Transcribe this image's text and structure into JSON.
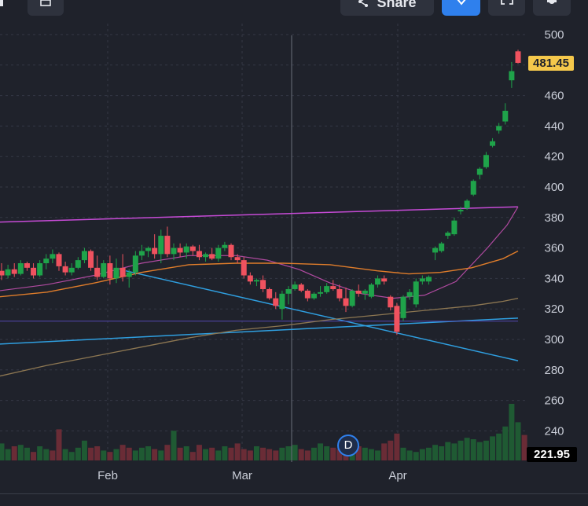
{
  "toolbar": {
    "share_label": "Share",
    "icons": [
      "calendar-icon",
      "share-icon",
      "check-icon",
      "fullscreen-icon",
      "settings-icon"
    ]
  },
  "colors": {
    "background": "#1f222b",
    "grid": "#343845",
    "up": "#1fa34a",
    "down": "#f0525f",
    "volume_up": "#1f5a33",
    "volume_down": "#6a2c36",
    "ma_short": "#b04aa0",
    "ma_mid": "#e07d2b",
    "ma_long": "#8d7752",
    "trend_magenta": "#c64bd6",
    "trend_blue": "#2f9fe0",
    "horizontal_purple": "#5246b0",
    "crosshair": "#6a6e7a",
    "last_price_tag": "#f5c84b"
  },
  "chart_data": {
    "type": "candlestick",
    "x_ticks": [
      "Feb",
      "Mar",
      "Apr"
    ],
    "y_ticks": [
      500,
      480,
      460,
      440,
      420,
      400,
      380,
      360,
      340,
      320,
      300,
      280,
      260,
      240
    ],
    "ylim": [
      230,
      505
    ],
    "grid": true,
    "last_price_label": "481.45",
    "volume_label": "221.95",
    "marker_label": "D",
    "candles": [
      {
        "o": 345,
        "h": 350,
        "l": 339,
        "c": 342
      },
      {
        "o": 342,
        "h": 349,
        "l": 340,
        "c": 346
      },
      {
        "o": 346,
        "h": 350,
        "l": 341,
        "c": 343
      },
      {
        "o": 343,
        "h": 352,
        "l": 342,
        "c": 350
      },
      {
        "o": 350,
        "h": 351,
        "l": 345,
        "c": 347
      },
      {
        "o": 347,
        "h": 350,
        "l": 340,
        "c": 342
      },
      {
        "o": 342,
        "h": 352,
        "l": 341,
        "c": 350
      },
      {
        "o": 350,
        "h": 356,
        "l": 346,
        "c": 353
      },
      {
        "o": 353,
        "h": 359,
        "l": 350,
        "c": 356
      },
      {
        "o": 356,
        "h": 357,
        "l": 345,
        "c": 348
      },
      {
        "o": 348,
        "h": 351,
        "l": 342,
        "c": 344
      },
      {
        "o": 344,
        "h": 350,
        "l": 342,
        "c": 347
      },
      {
        "o": 347,
        "h": 354,
        "l": 346,
        "c": 352
      },
      {
        "o": 352,
        "h": 360,
        "l": 350,
        "c": 358
      },
      {
        "o": 358,
        "h": 359,
        "l": 345,
        "c": 347
      },
      {
        "o": 347,
        "h": 355,
        "l": 339,
        "c": 341
      },
      {
        "o": 341,
        "h": 352,
        "l": 340,
        "c": 350
      },
      {
        "o": 350,
        "h": 355,
        "l": 336,
        "c": 340
      },
      {
        "o": 340,
        "h": 353,
        "l": 337,
        "c": 347
      },
      {
        "o": 347,
        "h": 356,
        "l": 338,
        "c": 341
      },
      {
        "o": 341,
        "h": 346,
        "l": 334,
        "c": 344
      },
      {
        "o": 344,
        "h": 358,
        "l": 342,
        "c": 355
      },
      {
        "o": 355,
        "h": 362,
        "l": 352,
        "c": 358
      },
      {
        "o": 358,
        "h": 361,
        "l": 354,
        "c": 360
      },
      {
        "o": 360,
        "h": 369,
        "l": 353,
        "c": 356
      },
      {
        "o": 356,
        "h": 372,
        "l": 350,
        "c": 368
      },
      {
        "o": 368,
        "h": 374,
        "l": 354,
        "c": 356
      },
      {
        "o": 356,
        "h": 363,
        "l": 352,
        "c": 360
      },
      {
        "o": 360,
        "h": 363,
        "l": 354,
        "c": 357
      },
      {
        "o": 357,
        "h": 363,
        "l": 353,
        "c": 361
      },
      {
        "o": 361,
        "h": 362,
        "l": 355,
        "c": 358
      },
      {
        "o": 358,
        "h": 362,
        "l": 352,
        "c": 354
      },
      {
        "o": 354,
        "h": 357,
        "l": 351,
        "c": 356
      },
      {
        "o": 356,
        "h": 360,
        "l": 352,
        "c": 353
      },
      {
        "o": 353,
        "h": 362,
        "l": 351,
        "c": 360
      },
      {
        "o": 360,
        "h": 364,
        "l": 358,
        "c": 362
      },
      {
        "o": 362,
        "h": 363,
        "l": 352,
        "c": 354
      },
      {
        "o": 354,
        "h": 356,
        "l": 350,
        "c": 352
      },
      {
        "o": 352,
        "h": 354,
        "l": 340,
        "c": 342
      },
      {
        "o": 342,
        "h": 344,
        "l": 336,
        "c": 338
      },
      {
        "o": 338,
        "h": 340,
        "l": 335,
        "c": 339
      },
      {
        "o": 339,
        "h": 342,
        "l": 331,
        "c": 333
      },
      {
        "o": 333,
        "h": 334,
        "l": 326,
        "c": 327
      },
      {
        "o": 327,
        "h": 331,
        "l": 320,
        "c": 322
      },
      {
        "o": 320,
        "h": 332,
        "l": 313,
        "c": 330
      },
      {
        "o": 330,
        "h": 335,
        "l": 323,
        "c": 333
      },
      {
        "o": 333,
        "h": 338,
        "l": 332,
        "c": 336
      },
      {
        "o": 336,
        "h": 337,
        "l": 331,
        "c": 332
      },
      {
        "o": 332,
        "h": 333,
        "l": 325,
        "c": 327
      },
      {
        "o": 327,
        "h": 331,
        "l": 326,
        "c": 330
      },
      {
        "o": 330,
        "h": 335,
        "l": 328,
        "c": 331
      },
      {
        "o": 331,
        "h": 337,
        "l": 330,
        "c": 335
      },
      {
        "o": 335,
        "h": 339,
        "l": 332,
        "c": 333
      },
      {
        "o": 333,
        "h": 336,
        "l": 325,
        "c": 327
      },
      {
        "o": 327,
        "h": 334,
        "l": 318,
        "c": 322
      },
      {
        "o": 322,
        "h": 333,
        "l": 321,
        "c": 332
      },
      {
        "o": 332,
        "h": 336,
        "l": 328,
        "c": 330
      },
      {
        "o": 330,
        "h": 333,
        "l": 326,
        "c": 332
      },
      {
        "o": 328,
        "h": 337,
        "l": 327,
        "c": 336
      },
      {
        "o": 336,
        "h": 342,
        "l": 334,
        "c": 340
      },
      {
        "o": 340,
        "h": 342,
        "l": 336,
        "c": 338
      },
      {
        "o": 328,
        "h": 329,
        "l": 319,
        "c": 321
      },
      {
        "o": 322,
        "h": 324,
        "l": 303,
        "c": 305
      },
      {
        "o": 314,
        "h": 329,
        "l": 312,
        "c": 328
      },
      {
        "o": 328,
        "h": 333,
        "l": 326,
        "c": 331
      },
      {
        "o": 323,
        "h": 340,
        "l": 321,
        "c": 338
      },
      {
        "o": 338,
        "h": 342,
        "l": 336,
        "c": 340
      },
      {
        "o": 338,
        "h": 342,
        "l": 336,
        "c": 341
      },
      {
        "o": 357,
        "h": 361,
        "l": 352,
        "c": 360
      },
      {
        "o": 358,
        "h": 364,
        "l": 357,
        "c": 363
      },
      {
        "o": 368,
        "h": 371,
        "l": 366,
        "c": 370
      },
      {
        "o": 369,
        "h": 380,
        "l": 368,
        "c": 378
      },
      {
        "o": 384,
        "h": 387,
        "l": 382,
        "c": 385
      },
      {
        "o": 386,
        "h": 392,
        "l": 385,
        "c": 391
      },
      {
        "o": 395,
        "h": 405,
        "l": 394,
        "c": 404
      },
      {
        "o": 408,
        "h": 413,
        "l": 405,
        "c": 412
      },
      {
        "o": 413,
        "h": 423,
        "l": 412,
        "c": 421
      },
      {
        "o": 427,
        "h": 432,
        "l": 426,
        "c": 430
      },
      {
        "o": 437,
        "h": 442,
        "l": 435,
        "c": 440
      },
      {
        "o": 443,
        "h": 455,
        "l": 441,
        "c": 450
      },
      {
        "o": 470,
        "h": 482,
        "l": 465,
        "c": 476
      },
      {
        "o": 489,
        "h": 490,
        "l": 481,
        "c": 481.45
      }
    ],
    "volume_up_down": [
      "u",
      "u",
      "d",
      "u",
      "u",
      "d",
      "u",
      "u",
      "d",
      "d",
      "u",
      "u",
      "u",
      "u",
      "d",
      "d",
      "u",
      "d",
      "u",
      "d",
      "d",
      "u",
      "u",
      "u",
      "d",
      "u",
      "d",
      "u",
      "d",
      "u",
      "d",
      "d",
      "u",
      "d",
      "u",
      "u",
      "d",
      "d",
      "d",
      "d",
      "u",
      "d",
      "d",
      "d",
      "u",
      "u",
      "u",
      "d",
      "d",
      "u",
      "u",
      "u",
      "d",
      "d",
      "d",
      "u",
      "d",
      "u",
      "u",
      "u",
      "d",
      "d",
      "d",
      "u",
      "u",
      "u",
      "u",
      "u",
      "u",
      "u",
      "u",
      "u",
      "u",
      "u",
      "u",
      "u",
      "u",
      "u",
      "u",
      "u",
      "u",
      "u",
      "d"
    ],
    "volume": [
      12,
      8,
      10,
      11,
      9,
      6,
      10,
      8,
      7,
      22,
      8,
      6,
      9,
      14,
      9,
      10,
      7,
      6,
      8,
      11,
      9,
      7,
      9,
      10,
      8,
      7,
      11,
      21,
      9,
      10,
      6,
      11,
      8,
      9,
      7,
      10,
      9,
      12,
      8,
      7,
      10,
      9,
      8,
      7,
      9,
      10,
      11,
      8,
      7,
      9,
      12,
      10,
      9,
      8,
      7,
      6,
      10,
      9,
      8,
      7,
      12,
      14,
      19,
      9,
      7,
      6,
      8,
      9,
      11,
      10,
      13,
      12,
      14,
      16,
      15,
      13,
      14,
      17,
      19,
      24,
      40,
      27,
      18
    ]
  }
}
